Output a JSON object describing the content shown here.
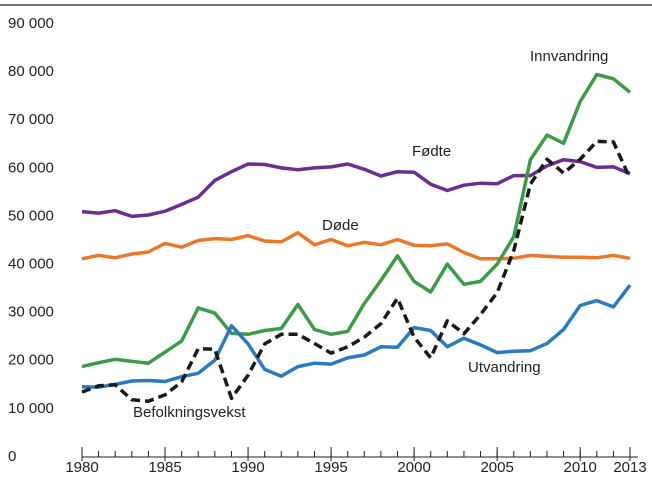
{
  "chart_data": {
    "type": "line",
    "x": [
      1980,
      1981,
      1982,
      1983,
      1984,
      1985,
      1986,
      1987,
      1988,
      1989,
      1990,
      1991,
      1992,
      1993,
      1994,
      1995,
      1996,
      1997,
      1998,
      1999,
      2000,
      2001,
      2002,
      2003,
      2004,
      2005,
      2006,
      2007,
      2008,
      2009,
      2010,
      2011,
      2012,
      2013
    ],
    "xlim": [
      1980,
      2013
    ],
    "xticks": [
      1980,
      1985,
      1990,
      1995,
      2000,
      2005,
      2010,
      2013
    ],
    "ylim": [
      0,
      90000
    ],
    "yticks": [
      0,
      {
        "value": 10000,
        "label": "10 000"
      },
      {
        "value": 20000,
        "label": "20 000"
      },
      {
        "value": 30000,
        "label": "30 000"
      },
      {
        "value": 40000,
        "label": "40 000"
      },
      {
        "value": 50000,
        "label": "50 000"
      },
      {
        "value": 60000,
        "label": "60 000"
      },
      {
        "value": 70000,
        "label": "70 000"
      },
      {
        "value": 80000,
        "label": "80 000"
      },
      {
        "value": 90000,
        "label": "90 000"
      }
    ],
    "grid": false,
    "series": [
      {
        "name": "Fødte",
        "color": "#6b2d8f",
        "values": [
          51000,
          50700,
          51200,
          50000,
          50300,
          51100,
          52500,
          54000,
          57500,
          59300,
          60900,
          60800,
          60100,
          59700,
          60100,
          60300,
          60900,
          59800,
          58400,
          59300,
          59200,
          56700,
          55400,
          56500,
          56900,
          56800,
          58500,
          58500,
          60500,
          61800,
          61400,
          60200,
          60300,
          58900
        ]
      },
      {
        "name": "Døde",
        "color": "#e8792b",
        "values": [
          41200,
          41900,
          41400,
          42200,
          42600,
          44400,
          43600,
          45000,
          45400,
          45200,
          46000,
          44900,
          44700,
          46600,
          44100,
          45200,
          43900,
          44600,
          44100,
          45200,
          44000,
          43900,
          44300,
          42500,
          41200,
          41200,
          41300,
          41900,
          41700,
          41500,
          41500,
          41400,
          41900,
          41300
        ]
      },
      {
        "name": "Innvandring",
        "color": "#3c9a48",
        "values": [
          18800,
          19600,
          20300,
          19900,
          19500,
          21800,
          24100,
          31000,
          29900,
          25700,
          25500,
          26300,
          26700,
          31700,
          26500,
          25500,
          26100,
          31900,
          36700,
          41800,
          36500,
          34300,
          40100,
          35900,
          36500,
          40100,
          45800,
          61800,
          66900,
          65200,
          73900,
          79500,
          78600,
          75800
        ]
      },
      {
        "name": "Utvandring",
        "color": "#2a7ac0",
        "values": [
          14600,
          14500,
          15100,
          15800,
          15900,
          15700,
          16700,
          17400,
          20100,
          27300,
          23500,
          18200,
          16800,
          18800,
          19500,
          19300,
          20600,
          21200,
          22900,
          22800,
          26900,
          26300,
          22900,
          24700,
          23300,
          21700,
          22000,
          22100,
          23600,
          26500,
          31500,
          32500,
          31200,
          35700
        ]
      },
      {
        "name": "Befolkningsvekst",
        "color": "#1a1a1a",
        "dashed": true,
        "values": [
          13500,
          14800,
          15000,
          11900,
          11600,
          12900,
          15600,
          22500,
          22400,
          12200,
          17000,
          23500,
          25500,
          25500,
          23600,
          21600,
          22900,
          24900,
          27700,
          33000,
          24900,
          20600,
          28300,
          25600,
          29600,
          34200,
          42900,
          56700,
          61900,
          59000,
          61900,
          65600,
          65500,
          57900
        ]
      }
    ]
  }
}
